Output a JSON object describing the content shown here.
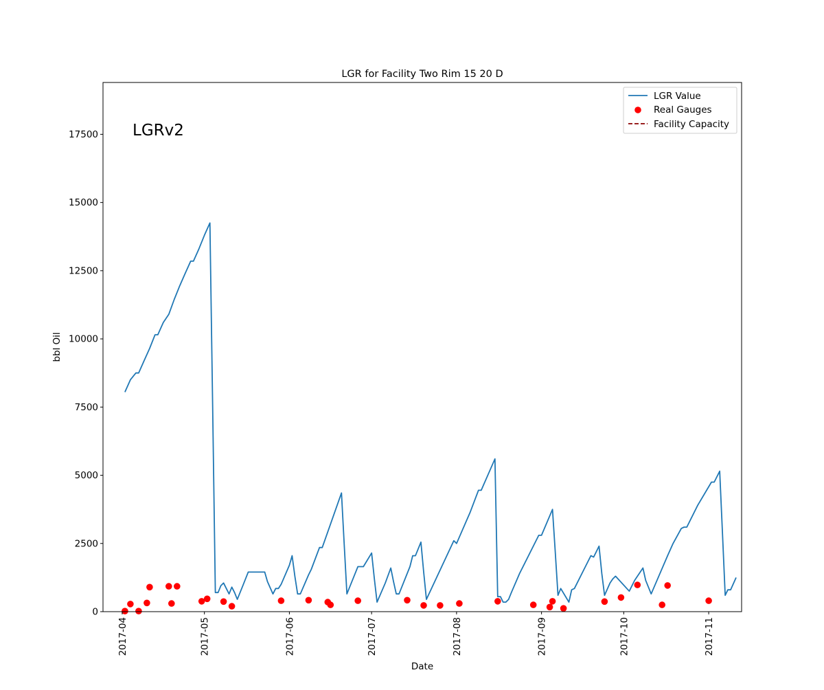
{
  "chart_data": {
    "type": "line",
    "title": "LGR for Facility Two Rim 15 20 D",
    "xlabel": "Date",
    "ylabel": "bbl Oil",
    "annotation": "LGRv2",
    "x_axis_type": "date",
    "xlim": [
      "2017-03-25",
      "2017-11-13"
    ],
    "ylim": [
      0,
      19400
    ],
    "x_ticks": [
      "2017-04",
      "2017-05",
      "2017-06",
      "2017-07",
      "2017-08",
      "2017-09",
      "2017-10",
      "2017-11"
    ],
    "y_ticks": [
      "0",
      "2500",
      "5000",
      "7500",
      "10000",
      "12500",
      "15000",
      "17500"
    ],
    "legend_position": "top-right",
    "grid": false,
    "colors": {
      "lgr": "#1f77b4",
      "gauges": "#ff0000",
      "capacity": "#8b0000"
    },
    "series": [
      {
        "name": "LGR Value",
        "style": "line",
        "points": [
          [
            "2017-04-02",
            8050
          ],
          [
            "2017-04-04",
            8500
          ],
          [
            "2017-04-06",
            8750
          ],
          [
            "2017-04-07",
            8750
          ],
          [
            "2017-04-09",
            9200
          ],
          [
            "2017-04-11",
            9650
          ],
          [
            "2017-04-13",
            10150
          ],
          [
            "2017-04-14",
            10150
          ],
          [
            "2017-04-16",
            10600
          ],
          [
            "2017-04-18",
            10900
          ],
          [
            "2017-04-20",
            11450
          ],
          [
            "2017-04-22",
            11950
          ],
          [
            "2017-04-24",
            12400
          ],
          [
            "2017-04-26",
            12850
          ],
          [
            "2017-04-27",
            12850
          ],
          [
            "2017-04-29",
            13300
          ],
          [
            "2017-05-01",
            13800
          ],
          [
            "2017-05-03",
            14250
          ],
          [
            "2017-05-04",
            7500
          ],
          [
            "2017-05-05",
            700
          ],
          [
            "2017-05-06",
            700
          ],
          [
            "2017-05-07",
            950
          ],
          [
            "2017-05-08",
            1050
          ],
          [
            "2017-05-09",
            850
          ],
          [
            "2017-05-10",
            650
          ],
          [
            "2017-05-11",
            900
          ],
          [
            "2017-05-12",
            700
          ],
          [
            "2017-05-13",
            450
          ],
          [
            "2017-05-15",
            950
          ],
          [
            "2017-05-17",
            1450
          ],
          [
            "2017-05-20",
            1450
          ],
          [
            "2017-05-23",
            1450
          ],
          [
            "2017-05-24",
            1100
          ],
          [
            "2017-05-26",
            650
          ],
          [
            "2017-05-27",
            850
          ],
          [
            "2017-05-28",
            850
          ],
          [
            "2017-05-29",
            1000
          ],
          [
            "2017-06-01",
            1700
          ],
          [
            "2017-06-02",
            2050
          ],
          [
            "2017-06-03",
            1300
          ],
          [
            "2017-06-04",
            650
          ],
          [
            "2017-06-05",
            650
          ],
          [
            "2017-06-08",
            1350
          ],
          [
            "2017-06-09",
            1550
          ],
          [
            "2017-06-12",
            2350
          ],
          [
            "2017-06-13",
            2350
          ],
          [
            "2017-06-20",
            4350
          ],
          [
            "2017-06-21",
            2500
          ],
          [
            "2017-06-22",
            650
          ],
          [
            "2017-06-25",
            1400
          ],
          [
            "2017-06-26",
            1650
          ],
          [
            "2017-06-28",
            1650
          ],
          [
            "2017-07-01",
            2150
          ],
          [
            "2017-07-02",
            1200
          ],
          [
            "2017-07-03",
            350
          ],
          [
            "2017-07-06",
            1050
          ],
          [
            "2017-07-08",
            1600
          ],
          [
            "2017-07-09",
            1100
          ],
          [
            "2017-07-10",
            650
          ],
          [
            "2017-07-11",
            650
          ],
          [
            "2017-07-15",
            1650
          ],
          [
            "2017-07-16",
            2050
          ],
          [
            "2017-07-17",
            2050
          ],
          [
            "2017-07-19",
            2550
          ],
          [
            "2017-07-20",
            1450
          ],
          [
            "2017-07-21",
            450
          ],
          [
            "2017-07-31",
            2600
          ],
          [
            "2017-08-01",
            2500
          ],
          [
            "2017-08-06",
            3650
          ],
          [
            "2017-08-09",
            4450
          ],
          [
            "2017-08-10",
            4450
          ],
          [
            "2017-08-15",
            5600
          ],
          [
            "2017-08-16",
            550
          ],
          [
            "2017-08-17",
            550
          ],
          [
            "2017-08-18",
            350
          ],
          [
            "2017-08-19",
            350
          ],
          [
            "2017-08-20",
            450
          ],
          [
            "2017-08-21",
            700
          ],
          [
            "2017-08-24",
            1400
          ],
          [
            "2017-08-31",
            2800
          ],
          [
            "2017-09-01",
            2800
          ],
          [
            "2017-09-05",
            3750
          ],
          [
            "2017-09-06",
            2200
          ],
          [
            "2017-09-07",
            600
          ],
          [
            "2017-09-08",
            850
          ],
          [
            "2017-09-11",
            350
          ],
          [
            "2017-09-12",
            800
          ],
          [
            "2017-09-13",
            850
          ],
          [
            "2017-09-17",
            1650
          ],
          [
            "2017-09-19",
            2050
          ],
          [
            "2017-09-20",
            2000
          ],
          [
            "2017-09-22",
            2400
          ],
          [
            "2017-09-23",
            1400
          ],
          [
            "2017-09-24",
            600
          ],
          [
            "2017-09-26",
            1050
          ],
          [
            "2017-09-27",
            1200
          ],
          [
            "2017-09-28",
            1300
          ],
          [
            "2017-10-03",
            750
          ],
          [
            "2017-10-05",
            1150
          ],
          [
            "2017-10-08",
            1600
          ],
          [
            "2017-10-09",
            1150
          ],
          [
            "2017-10-11",
            650
          ],
          [
            "2017-10-17",
            2050
          ],
          [
            "2017-10-19",
            2500
          ],
          [
            "2017-10-22",
            3050
          ],
          [
            "2017-10-23",
            3100
          ],
          [
            "2017-10-24",
            3100
          ],
          [
            "2017-10-28",
            3900
          ],
          [
            "2017-11-02",
            4750
          ],
          [
            "2017-11-03",
            4750
          ],
          [
            "2017-11-05",
            5150
          ],
          [
            "2017-11-06",
            2900
          ],
          [
            "2017-11-07",
            600
          ],
          [
            "2017-11-08",
            800
          ],
          [
            "2017-11-09",
            800
          ],
          [
            "2017-11-11",
            1250
          ]
        ]
      },
      {
        "name": "Real Gauges",
        "style": "scatter",
        "points": [
          [
            "2017-04-02",
            20
          ],
          [
            "2017-04-04",
            280
          ],
          [
            "2017-04-07",
            20
          ],
          [
            "2017-04-10",
            320
          ],
          [
            "2017-04-11",
            900
          ],
          [
            "2017-04-18",
            930
          ],
          [
            "2017-04-19",
            300
          ],
          [
            "2017-04-21",
            930
          ],
          [
            "2017-04-30",
            380
          ],
          [
            "2017-05-02",
            470
          ],
          [
            "2017-05-08",
            370
          ],
          [
            "2017-05-11",
            200
          ],
          [
            "2017-05-29",
            400
          ],
          [
            "2017-06-08",
            420
          ],
          [
            "2017-06-15",
            350
          ],
          [
            "2017-06-16",
            250
          ],
          [
            "2017-06-26",
            400
          ],
          [
            "2017-07-14",
            420
          ],
          [
            "2017-07-20",
            230
          ],
          [
            "2017-07-26",
            230
          ],
          [
            "2017-08-02",
            300
          ],
          [
            "2017-08-16",
            380
          ],
          [
            "2017-08-29",
            250
          ],
          [
            "2017-09-04",
            170
          ],
          [
            "2017-09-05",
            380
          ],
          [
            "2017-09-09",
            120
          ],
          [
            "2017-09-24",
            370
          ],
          [
            "2017-09-30",
            520
          ],
          [
            "2017-10-06",
            980
          ],
          [
            "2017-10-15",
            250
          ],
          [
            "2017-10-17",
            960
          ],
          [
            "2017-11-01",
            400
          ]
        ]
      },
      {
        "name": "Facility Capacity",
        "style": "dashed",
        "points": []
      }
    ]
  }
}
